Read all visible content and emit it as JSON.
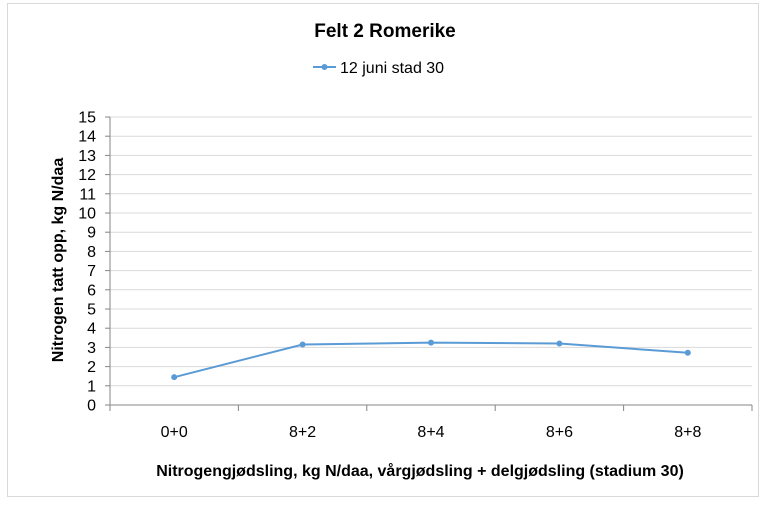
{
  "chart_data": {
    "type": "line",
    "title": "Felt 2 Romerike",
    "xlabel": "Nitrogengjødsling, kg N/daa, vårgjødsling + delgjødsling (stadium 30)",
    "ylabel": "Nitrogen tatt opp, kg N/daa",
    "categories": [
      "0+0",
      "8+2",
      "8+4",
      "8+6",
      "8+8"
    ],
    "series": [
      {
        "name": "12 juni stad 30",
        "values": [
          1.45,
          3.15,
          3.25,
          3.2,
          2.72
        ],
        "color": "#5b9bd5"
      }
    ],
    "ylim": [
      0,
      15
    ],
    "yticks": [
      0,
      1,
      2,
      3,
      4,
      5,
      6,
      7,
      8,
      9,
      10,
      11,
      12,
      13,
      14,
      15
    ],
    "grid": true,
    "legend": "top"
  }
}
